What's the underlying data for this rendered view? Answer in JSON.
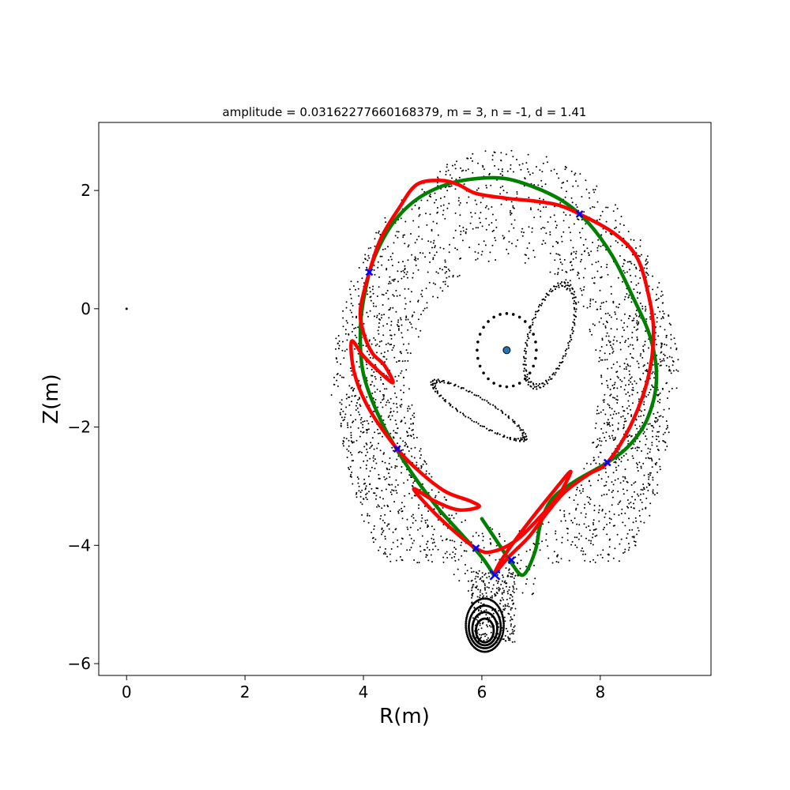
{
  "chart_data": {
    "type": "scatter",
    "title": "amplitude = 0.03162277660168379, m = 3, n = -1, d = 1.41",
    "xlabel": "R(m)",
    "ylabel": "Z(m)",
    "xlim": [
      -0.47,
      9.87
    ],
    "ylim": [
      -6.2,
      3.15
    ],
    "xticks": [
      0,
      2,
      4,
      6,
      8
    ],
    "yticks": [
      -6,
      -4,
      -2,
      0,
      2
    ],
    "xtick_labels": [
      "0",
      "2",
      "4",
      "6",
      "8"
    ],
    "ytick_labels": [
      "−6",
      "−4",
      "−2",
      "0",
      "2"
    ],
    "grid": false,
    "colors": {
      "unstable_manifold": "#ff0000",
      "stable_manifold": "#008000",
      "x_points": "#0000ff",
      "axis_point": "#1f77b4",
      "poincare": "#000000"
    },
    "magnetic_axis": {
      "x": 6.42,
      "y": -0.7
    },
    "origin_marker": {
      "x": 0.0,
      "y": 0.0
    },
    "x_points": [
      {
        "x": 6.22,
        "y": -4.5
      },
      {
        "x": 6.5,
        "y": -4.25
      },
      {
        "x": 7.65,
        "y": 1.6
      },
      {
        "x": 8.12,
        "y": -2.6
      },
      {
        "x": 4.1,
        "y": 0.62
      },
      {
        "x": 4.57,
        "y": -2.37
      },
      {
        "x": 5.9,
        "y": -4.05
      }
    ],
    "series": [
      {
        "values": [
          [
            6.2,
            -4.5
          ],
          [
            6.0,
            -4.2
          ],
          [
            5.6,
            -3.75
          ],
          [
            5.2,
            -3.3
          ],
          [
            4.7,
            -2.6
          ],
          [
            4.3,
            -1.9
          ],
          [
            4.0,
            -1.1
          ],
          [
            3.95,
            -0.3
          ],
          [
            4.05,
            0.4
          ],
          [
            4.2,
            0.9
          ],
          [
            4.5,
            1.45
          ],
          [
            4.9,
            1.85
          ],
          [
            5.4,
            2.1
          ],
          [
            5.9,
            2.2
          ],
          [
            6.4,
            2.2
          ],
          [
            6.9,
            2.05
          ],
          [
            7.4,
            1.8
          ],
          [
            7.8,
            1.45
          ],
          [
            8.2,
            0.9
          ],
          [
            8.55,
            0.2
          ],
          [
            8.85,
            -0.5
          ],
          [
            8.95,
            -1.2
          ],
          [
            8.8,
            -1.85
          ],
          [
            8.5,
            -2.3
          ],
          [
            8.12,
            -2.6
          ],
          [
            7.6,
            -2.9
          ],
          [
            7.2,
            -3.2
          ],
          [
            7.0,
            -3.6
          ],
          [
            6.9,
            -4.1
          ],
          [
            6.7,
            -4.5
          ],
          [
            6.5,
            -4.3
          ],
          [
            6.3,
            -4.0
          ],
          [
            6.0,
            -3.55
          ]
        ]
      },
      {
        "values": [
          [
            6.2,
            -4.5
          ],
          [
            6.45,
            -4.2
          ],
          [
            6.8,
            -3.85
          ],
          [
            7.1,
            -3.45
          ],
          [
            7.4,
            -3.1
          ],
          [
            7.8,
            -2.8
          ],
          [
            8.12,
            -2.6
          ],
          [
            8.5,
            -2.0
          ],
          [
            8.8,
            -1.2
          ],
          [
            8.9,
            -0.4
          ],
          [
            8.8,
            0.3
          ],
          [
            8.6,
            0.9
          ],
          [
            8.2,
            1.3
          ],
          [
            7.65,
            1.6
          ],
          [
            7.3,
            1.75
          ],
          [
            6.9,
            1.82
          ],
          [
            6.4,
            1.87
          ],
          [
            5.9,
            1.95
          ],
          [
            5.6,
            2.1
          ],
          [
            5.3,
            2.17
          ],
          [
            4.9,
            2.1
          ],
          [
            4.6,
            1.7
          ],
          [
            4.3,
            1.2
          ],
          [
            4.1,
            0.62
          ],
          [
            3.95,
            0.0
          ],
          [
            4.0,
            -0.4
          ],
          [
            4.15,
            -0.75
          ],
          [
            4.35,
            -0.95
          ],
          [
            4.5,
            -1.25
          ],
          [
            4.25,
            -1.05
          ],
          [
            4.0,
            -0.8
          ],
          [
            3.8,
            -0.55
          ],
          [
            3.85,
            -1.1
          ],
          [
            4.1,
            -1.7
          ],
          [
            4.57,
            -2.37
          ],
          [
            5.0,
            -2.8
          ],
          [
            5.4,
            -3.1
          ],
          [
            5.8,
            -3.25
          ],
          [
            5.95,
            -3.35
          ],
          [
            5.6,
            -3.4
          ],
          [
            5.2,
            -3.25
          ],
          [
            4.85,
            -3.05
          ],
          [
            5.3,
            -3.55
          ],
          [
            5.9,
            -4.05
          ],
          [
            6.2,
            -4.1
          ],
          [
            6.6,
            -3.9
          ],
          [
            7.0,
            -3.5
          ],
          [
            7.3,
            -3.15
          ],
          [
            7.5,
            -2.75
          ],
          [
            7.2,
            -3.1
          ],
          [
            6.8,
            -3.6
          ],
          [
            6.5,
            -4.0
          ],
          [
            6.3,
            -4.3
          ],
          [
            6.2,
            -4.5
          ]
        ]
      }
    ]
  }
}
